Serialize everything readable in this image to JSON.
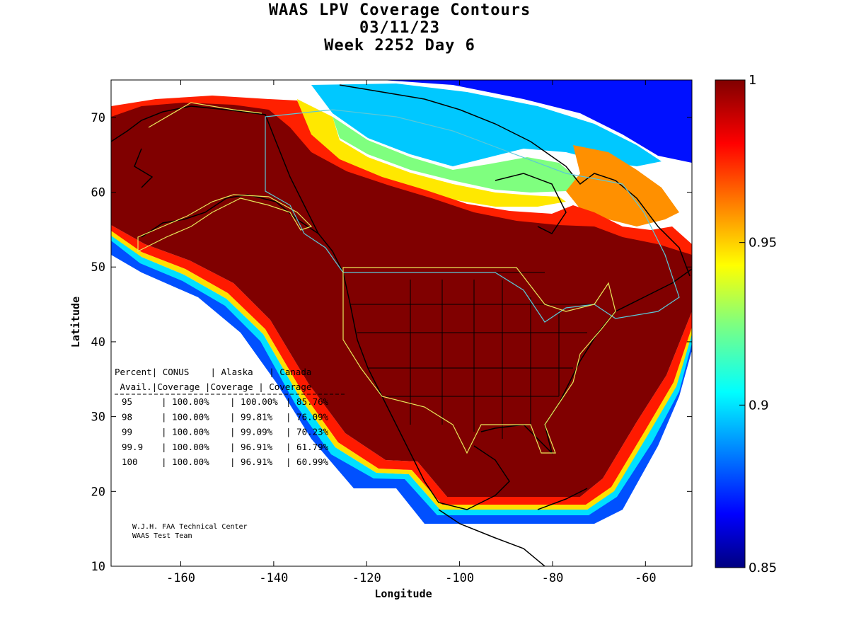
{
  "title": {
    "line1": "WAAS LPV Coverage Contours",
    "line2": "03/11/23",
    "line3": "Week 2252 Day 6"
  },
  "axes": {
    "xlabel": "Longitude",
    "ylabel": "Latitude",
    "xticks": [
      "-160",
      "-140",
      "-120",
      "-100",
      "-80",
      "-60"
    ],
    "xtick_values": [
      -160,
      -140,
      -120,
      -100,
      -80,
      -60
    ],
    "yticks": [
      "70",
      "60",
      "50",
      "40",
      "30",
      "20",
      "10"
    ],
    "ytick_values": [
      70,
      60,
      50,
      40,
      30,
      20,
      10
    ],
    "xlim": [
      -175,
      -50
    ],
    "ylim": [
      10,
      75
    ]
  },
  "colorbar": {
    "ticks": [
      "1",
      "0.95",
      "0.9",
      "0.85"
    ],
    "tick_values": [
      1,
      0.95,
      0.9,
      0.85
    ],
    "range": [
      0.85,
      1
    ]
  },
  "table": {
    "header1": "Percent| CONUS    | Alaska   | Canada",
    "header2": " Avail.|Coverage |Coverage | Coverage",
    "rows": [
      {
        "pct": "95",
        "conus": "100.00%",
        "alaska": "100.00%",
        "canada": "85.76%"
      },
      {
        "pct": "98",
        "conus": "100.00%",
        "alaska": "99.81%",
        "canada": "76.09%"
      },
      {
        "pct": "99",
        "conus": "100.00%",
        "alaska": "99.09%",
        "canada": "70.23%"
      },
      {
        "pct": "99.9",
        "conus": "100.00%",
        "alaska": "96.91%",
        "canada": "61.79%"
      },
      {
        "pct": "100",
        "conus": "100.00%",
        "alaska": "96.91%",
        "canada": "60.99%"
      }
    ]
  },
  "credit": {
    "line1": "W.J.H. FAA Technical Center",
    "line2": "WAAS Test Team"
  },
  "colors": {
    "full": "#800000",
    "jet_high": "#ff0000",
    "jet_mid": "#ffff00",
    "jet_cyan": "#00ffff",
    "jet_low": "#0000ff",
    "jet_min": "#000080"
  }
}
